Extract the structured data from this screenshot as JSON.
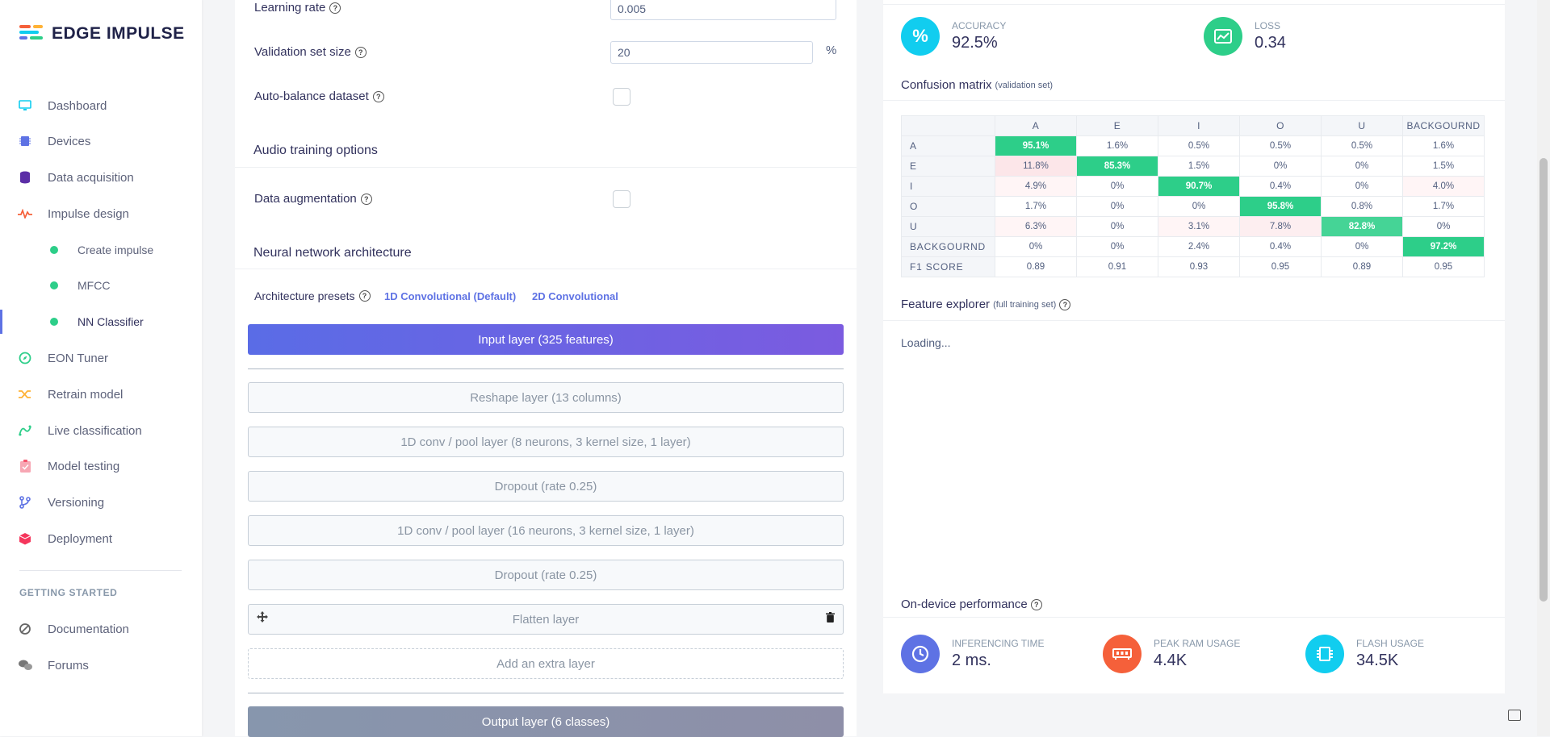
{
  "brand": {
    "name": "EDGE IMPULSE"
  },
  "sidebar": {
    "items": [
      {
        "label": "Dashboard",
        "icon": "monitor-icon"
      },
      {
        "label": "Devices",
        "icon": "chip-icon"
      },
      {
        "label": "Data acquisition",
        "icon": "database-icon"
      },
      {
        "label": "Impulse design",
        "icon": "pulse-icon"
      },
      {
        "label": "Create impulse",
        "icon": "dot-icon"
      },
      {
        "label": "MFCC",
        "icon": "dot-icon"
      },
      {
        "label": "NN Classifier",
        "icon": "dot-icon"
      },
      {
        "label": "EON Tuner",
        "icon": "compass-icon"
      },
      {
        "label": "Retrain model",
        "icon": "shuffle-icon"
      },
      {
        "label": "Live classification",
        "icon": "graph-icon"
      },
      {
        "label": "Model testing",
        "icon": "clipboard-icon"
      },
      {
        "label": "Versioning",
        "icon": "branch-icon"
      },
      {
        "label": "Deployment",
        "icon": "box-icon"
      }
    ],
    "section_title": "GETTING STARTED",
    "help_items": [
      {
        "label": "Documentation",
        "icon": "book-icon"
      },
      {
        "label": "Forums",
        "icon": "chat-icon"
      }
    ]
  },
  "training": {
    "learning_rate_label": "Learning rate",
    "learning_rate_value": "0.005",
    "validation_label": "Validation set size",
    "validation_value": "20",
    "validation_unit": "%",
    "autobalance_label": "Auto-balance dataset",
    "audio_section": "Audio training options",
    "augmentation_label": "Data augmentation",
    "nn_section": "Neural network architecture",
    "presets_label": "Architecture presets",
    "preset_1d": "1D Convolutional (Default)",
    "preset_2d": "2D Convolutional",
    "input_layer": "Input layer (325 features)",
    "layers": [
      "Reshape layer (13 columns)",
      "1D conv / pool layer (8 neurons, 3 kernel size, 1 layer)",
      "Dropout (rate 0.25)",
      "1D conv / pool layer (16 neurons, 3 kernel size, 1 layer)",
      "Dropout (rate 0.25)",
      "Flatten layer"
    ],
    "add_layer": "Add an extra layer",
    "output_layer": "Output layer (6 classes)"
  },
  "results": {
    "accuracy_label": "ACCURACY",
    "accuracy_value": "92.5%",
    "loss_label": "LOSS",
    "loss_value": "0.34",
    "confusion_title": "Confusion matrix",
    "confusion_subtitle": "(validation set)",
    "columns": [
      "A",
      "E",
      "I",
      "O",
      "U",
      "BACKGOURND"
    ],
    "rows": [
      {
        "label": "A",
        "cells": [
          "95.1%",
          "1.6%",
          "0.5%",
          "0.5%",
          "0.5%",
          "1.6%"
        ]
      },
      {
        "label": "E",
        "cells": [
          "11.8%",
          "85.3%",
          "1.5%",
          "0%",
          "0%",
          "1.5%"
        ]
      },
      {
        "label": "I",
        "cells": [
          "4.9%",
          "0%",
          "90.7%",
          "0.4%",
          "0%",
          "4.0%"
        ]
      },
      {
        "label": "O",
        "cells": [
          "1.7%",
          "0%",
          "0%",
          "95.8%",
          "0.8%",
          "1.7%"
        ]
      },
      {
        "label": "U",
        "cells": [
          "6.3%",
          "0%",
          "3.1%",
          "7.8%",
          "82.8%",
          "0%"
        ]
      },
      {
        "label": "BACKGOURND",
        "cells": [
          "0%",
          "0%",
          "2.4%",
          "0.4%",
          "0%",
          "97.2%"
        ]
      },
      {
        "label": "F1 SCORE",
        "cells": [
          "0.89",
          "0.91",
          "0.93",
          "0.95",
          "0.89",
          "0.95"
        ]
      }
    ],
    "feature_title": "Feature explorer",
    "feature_subtitle": "(full training set)",
    "feature_loading": "Loading...",
    "perf_title": "On-device performance",
    "inferencing_label": "INFERENCING TIME",
    "inferencing_value": "2 ms.",
    "ram_label": "PEAK RAM USAGE",
    "ram_value": "4.4K",
    "flash_label": "FLASH USAGE",
    "flash_value": "34.5K"
  },
  "colors": {
    "accent": "#5e72e4",
    "green": "#2dce89",
    "cyan": "#11cdef",
    "orange": "#f5603a"
  }
}
